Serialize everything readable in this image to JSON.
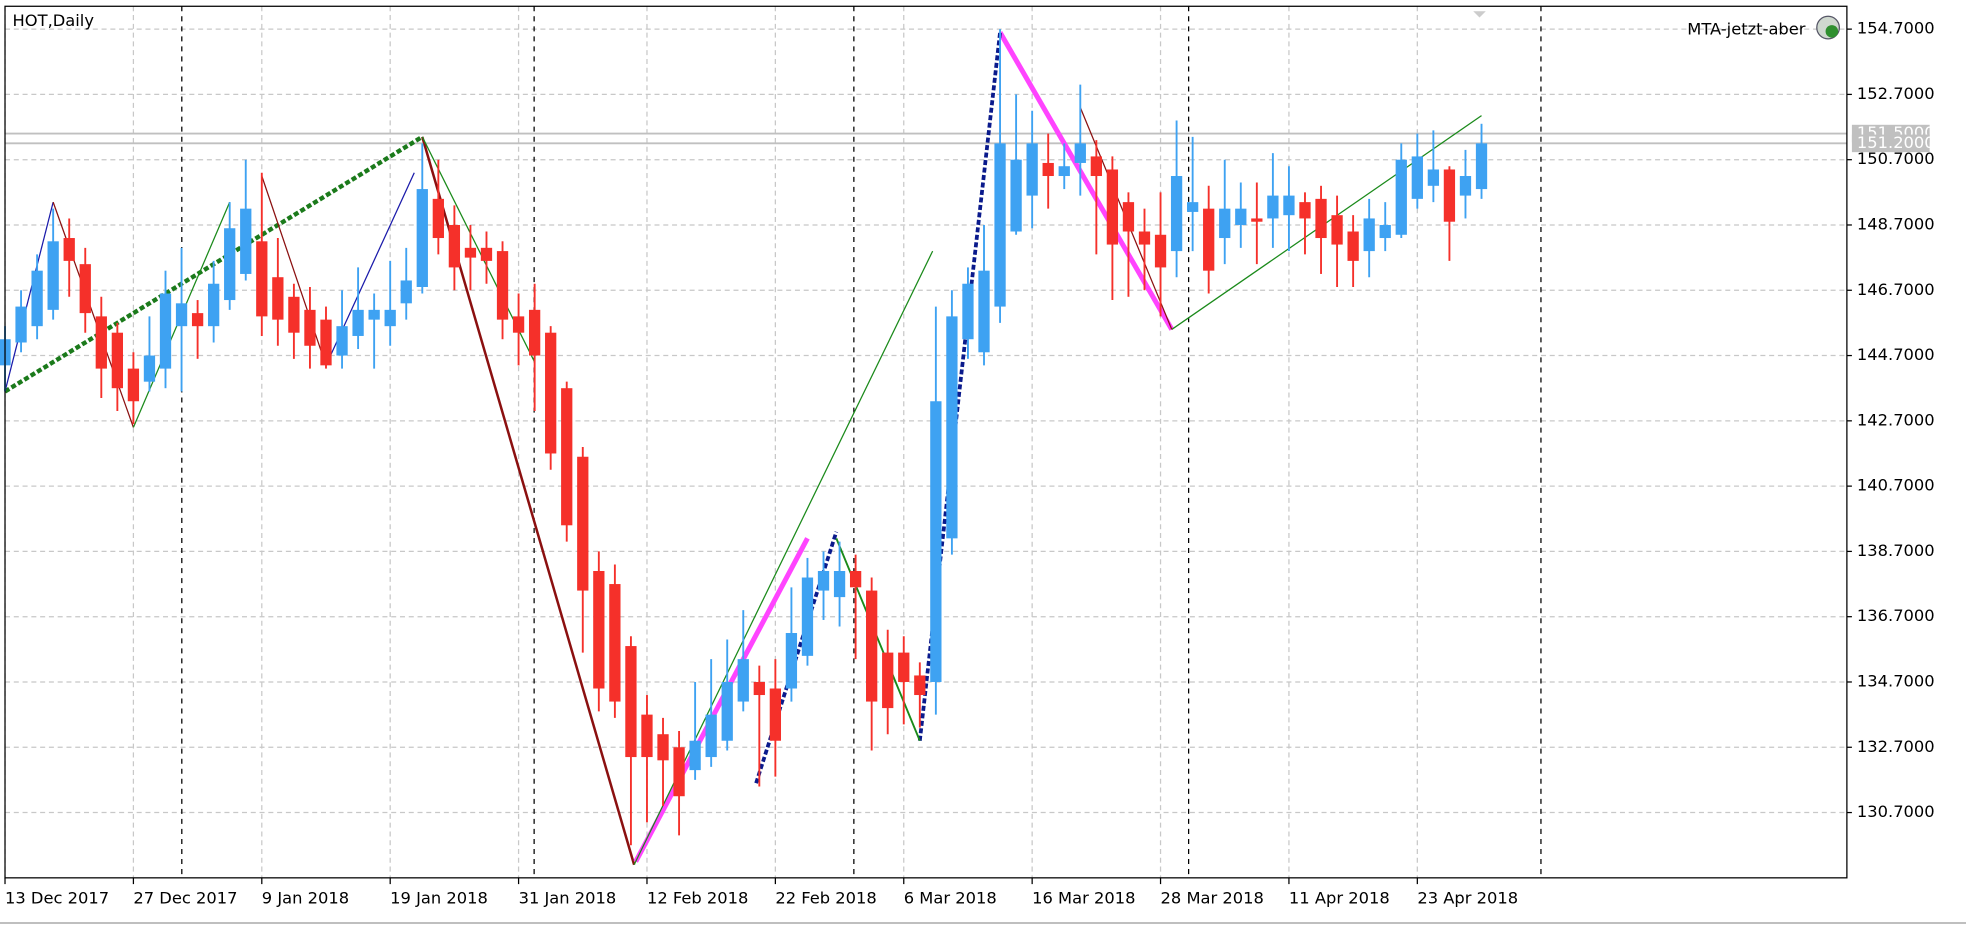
{
  "chart_data": {
    "type": "candlestick",
    "title": "HOT,Daily",
    "indicator": "MTA-jetzt-aber",
    "up_color": "#3ea2f2",
    "down_color": "#f5302a",
    "grid": true,
    "ylim": [
      128.7,
      155.4
    ],
    "yticks": [
      {
        "value": 130.7,
        "label": "130.7000"
      },
      {
        "value": 132.7,
        "label": "132.7000"
      },
      {
        "value": 134.7,
        "label": "134.7000"
      },
      {
        "value": 136.7,
        "label": "136.7000"
      },
      {
        "value": 138.7,
        "label": "138.7000"
      },
      {
        "value": 140.7,
        "label": "140.7000"
      },
      {
        "value": 142.7,
        "label": "142.7000"
      },
      {
        "value": 144.7,
        "label": "144.7000"
      },
      {
        "value": 146.7,
        "label": "146.7000"
      },
      {
        "value": 148.7,
        "label": "148.7000"
      },
      {
        "value": 150.7,
        "label": "150.7000"
      },
      {
        "value": 152.7,
        "label": "152.7000"
      },
      {
        "value": 154.7,
        "label": "154.7000"
      }
    ],
    "price_lines": [
      {
        "value": 151.5,
        "label": "151.5000"
      },
      {
        "value": 151.2,
        "label": "151.2000"
      }
    ],
    "categories": [
      "13 Dec 2017",
      null,
      null,
      null,
      null,
      null,
      null,
      null,
      "27 Dec 2017",
      null,
      null,
      null,
      null,
      null,
      null,
      null,
      "9 Jan 2018",
      null,
      null,
      null,
      null,
      null,
      null,
      null,
      "19 Jan 2018",
      null,
      null,
      null,
      null,
      null,
      null,
      null,
      "31 Jan 2018",
      null,
      null,
      null,
      null,
      null,
      null,
      null,
      "12 Feb 2018",
      null,
      null,
      null,
      null,
      null,
      null,
      null,
      "22 Feb 2018",
      null,
      null,
      null,
      null,
      null,
      null,
      null,
      "6 Mar 2018",
      null,
      null,
      null,
      null,
      null,
      null,
      null,
      "16 Mar 2018",
      null,
      null,
      null,
      null,
      null,
      null,
      null,
      "28 Mar 2018",
      null,
      null,
      null,
      null,
      null,
      null,
      null,
      "11 Apr 2018",
      null,
      null,
      null,
      null,
      null,
      null,
      null,
      "23 Apr 2018",
      null,
      null,
      null,
      null
    ],
    "open": [
      144.4,
      145.1,
      145.6,
      146.1,
      148.3,
      147.5,
      145.9,
      145.4,
      144.3,
      143.9,
      144.3,
      145.6,
      146.0,
      145.6,
      146.4,
      147.2,
      148.2,
      147.1,
      146.5,
      146.1,
      145.8,
      144.7,
      145.3,
      145.8,
      145.6,
      146.3,
      146.8,
      149.5,
      148.7,
      148.0,
      148.0,
      147.9,
      145.9,
      146.1,
      145.4,
      143.7,
      141.6,
      138.1,
      137.7,
      135.8,
      133.7,
      133.1,
      132.7,
      132.0,
      132.4,
      132.9,
      134.1,
      134.7,
      134.5,
      134.5,
      135.5,
      137.5,
      137.3,
      138.1,
      137.5,
      135.6,
      135.6,
      134.9,
      134.7,
      139.1,
      145.2,
      144.8,
      146.2,
      148.5,
      149.6,
      150.6,
      150.2,
      150.6,
      150.8,
      150.4,
      149.4,
      148.5,
      148.4,
      147.9,
      149.1,
      149.2,
      148.3,
      148.7,
      148.9,
      148.9,
      149.0,
      149.4,
      149.5,
      149.0,
      148.5,
      147.9,
      148.3,
      148.4,
      149.5,
      149.9,
      150.4,
      149.6,
      149.8
    ],
    "high": [
      145.6,
      146.7,
      147.8,
      149.2,
      148.9,
      148.0,
      146.5,
      145.7,
      144.8,
      145.9,
      147.3,
      148.0,
      146.4,
      147.6,
      149.4,
      150.7,
      150.3,
      148.3,
      146.9,
      146.8,
      146.2,
      146.7,
      147.4,
      146.6,
      147.6,
      148.0,
      151.2,
      150.7,
      149.3,
      148.7,
      148.5,
      148.2,
      146.6,
      146.9,
      145.6,
      143.9,
      141.9,
      138.7,
      138.3,
      136.1,
      134.3,
      133.6,
      133.2,
      134.7,
      135.4,
      136.0,
      136.9,
      135.2,
      135.4,
      137.6,
      138.5,
      138.7,
      139.0,
      138.6,
      137.9,
      136.3,
      136.1,
      135.3,
      146.2,
      146.7,
      147.4,
      148.7,
      154.7,
      152.7,
      152.2,
      151.5,
      151.2,
      153.0,
      151.3,
      150.8,
      149.7,
      149.2,
      149.7,
      151.9,
      151.4,
      149.9,
      150.7,
      150.0,
      150.0,
      150.9,
      150.5,
      149.7,
      149.9,
      149.6,
      149.0,
      149.5,
      149.4,
      151.2,
      151.5,
      151.6,
      150.5,
      151.0,
      151.8
    ],
    "low": [
      143.6,
      144.8,
      145.2,
      145.8,
      146.5,
      145.4,
      143.4,
      143.0,
      142.6,
      143.6,
      143.7,
      143.6,
      144.6,
      145.1,
      146.1,
      147.0,
      145.3,
      145.0,
      144.6,
      144.3,
      144.3,
      144.3,
      144.9,
      144.3,
      145.0,
      145.8,
      146.6,
      147.8,
      146.7,
      146.7,
      146.9,
      145.2,
      144.4,
      143.0,
      141.2,
      139.0,
      135.6,
      133.8,
      133.6,
      129.7,
      130.4,
      130.9,
      130.0,
      131.7,
      132.1,
      132.6,
      133.8,
      131.5,
      131.8,
      134.1,
      135.2,
      136.6,
      136.4,
      135.4,
      132.6,
      133.1,
      133.4,
      133.3,
      133.7,
      138.6,
      144.6,
      144.4,
      145.7,
      148.4,
      148.6,
      149.2,
      149.8,
      149.6,
      147.8,
      146.4,
      146.5,
      146.7,
      145.9,
      147.1,
      147.9,
      146.6,
      147.5,
      148.0,
      147.5,
      148.0,
      147.9,
      147.8,
      147.2,
      146.8,
      146.8,
      147.1,
      147.9,
      148.3,
      149.2,
      149.4,
      147.6,
      148.9,
      149.5
    ],
    "close": [
      145.2,
      146.2,
      147.3,
      148.2,
      147.6,
      146.0,
      144.3,
      143.7,
      143.3,
      144.7,
      146.6,
      146.3,
      145.6,
      146.9,
      148.6,
      149.2,
      145.9,
      145.8,
      145.4,
      145.0,
      144.4,
      145.6,
      146.1,
      146.1,
      146.1,
      147.0,
      149.8,
      148.3,
      147.4,
      147.7,
      147.6,
      145.8,
      145.4,
      144.7,
      141.7,
      139.5,
      137.5,
      134.5,
      134.1,
      132.4,
      132.4,
      132.3,
      131.2,
      132.9,
      133.7,
      134.7,
      135.4,
      134.3,
      132.9,
      136.2,
      137.9,
      138.1,
      138.1,
      137.6,
      134.1,
      133.9,
      134.7,
      134.3,
      143.3,
      145.9,
      146.9,
      147.3,
      151.2,
      150.7,
      151.2,
      150.2,
      150.5,
      151.2,
      150.2,
      148.1,
      148.5,
      148.1,
      147.4,
      150.2,
      149.4,
      147.3,
      149.2,
      149.2,
      148.8,
      149.6,
      149.6,
      148.9,
      148.3,
      148.1,
      147.6,
      148.9,
      148.7,
      150.7,
      150.8,
      150.4,
      148.8,
      150.2,
      151.2
    ],
    "overlays": [
      {
        "color": "#1b7a1b",
        "width": 3.5,
        "dash": true,
        "x": [
          0,
          26
        ],
        "y": [
          143.6,
          151.4
        ]
      },
      {
        "color": "#8b1010",
        "width": 2,
        "dash": false,
        "x": [
          26,
          39.2
        ],
        "y": [
          151.4,
          129.1
        ]
      },
      {
        "color": "#ff44ff",
        "width": 4,
        "dash": false,
        "x": [
          39.3,
          50
        ],
        "y": [
          129.2,
          139.1
        ]
      },
      {
        "color": "#ff44ff",
        "width": 4,
        "dash": false,
        "x": [
          62,
          72.7
        ],
        "y": [
          154.6,
          145.5
        ]
      },
      {
        "color": "#0a1a8c",
        "width": 3,
        "dash": true,
        "x": [
          46.8,
          51.8
        ],
        "y": [
          131.6,
          139.3
        ]
      },
      {
        "color": "#0a1a8c",
        "width": 3,
        "dash": true,
        "x": [
          57,
          62
        ],
        "y": [
          132.9,
          154.6
        ]
      },
      {
        "color": "#1a8a1a",
        "width": 1,
        "dash": false,
        "x": [
          39.2,
          57.8
        ],
        "y": [
          129.1,
          147.9
        ]
      },
      {
        "color": "#1a8a1a",
        "width": 1,
        "dash": false,
        "x": [
          72.7,
          92
        ],
        "y": [
          145.5,
          152.05
        ]
      },
      {
        "color": "#1a1aaa",
        "width": 1,
        "dash": false,
        "x": [
          0,
          3
        ],
        "y": [
          143.6,
          149.4
        ]
      },
      {
        "color": "#8b1010",
        "width": 1,
        "dash": false,
        "x": [
          3,
          8
        ],
        "y": [
          149.4,
          142.5
        ]
      },
      {
        "color": "#1a8a1a",
        "width": 1,
        "dash": false,
        "x": [
          8,
          14
        ],
        "y": [
          142.5,
          149.4
        ]
      },
      {
        "color": "#8b1010",
        "width": 1,
        "dash": false,
        "x": [
          16,
          20
        ],
        "y": [
          150.2,
          144.4
        ]
      },
      {
        "color": "#1a1aaa",
        "width": 1,
        "dash": false,
        "x": [
          20,
          25.5
        ],
        "y": [
          144.4,
          150.3
        ]
      },
      {
        "color": "#1a8a1a",
        "width": 1,
        "dash": false,
        "x": [
          26,
          33
        ],
        "y": [
          151.4,
          144.5
        ]
      },
      {
        "color": "#1a8a1a",
        "width": 1.5,
        "dash": false,
        "x": [
          51.8,
          57
        ],
        "y": [
          139.1,
          132.9
        ]
      },
      {
        "color": "#8b1010",
        "width": 1,
        "dash": false,
        "x": [
          67,
          72.7
        ],
        "y": [
          152.3,
          145.5
        ]
      }
    ]
  }
}
